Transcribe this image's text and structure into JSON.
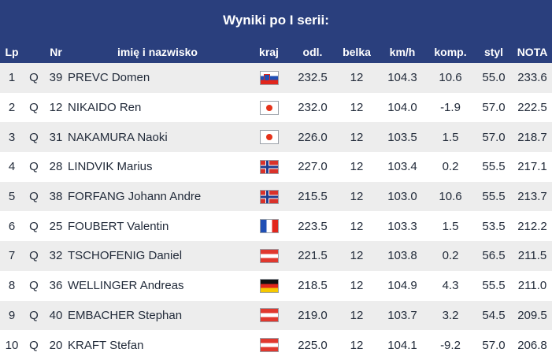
{
  "title": "Wyniki po I serii:",
  "columns": {
    "lp": "Lp",
    "nr": "Nr",
    "name": "imię i nazwisko",
    "country": "kraj",
    "distance": "odl.",
    "gate": "belka",
    "speed": "km/h",
    "comp": "komp.",
    "style": "styl",
    "total": "NOTA"
  },
  "rows": [
    {
      "lp": "1",
      "q": "Q",
      "nr": "39",
      "name": "PREVC Domen",
      "flag": "slo",
      "distance": "232.5",
      "gate": "12",
      "speed": "104.3",
      "comp": "10.6",
      "style": "55.0",
      "total": "233.6"
    },
    {
      "lp": "2",
      "q": "Q",
      "nr": "12",
      "name": "NIKAIDO Ren",
      "flag": "jpn",
      "distance": "232.0",
      "gate": "12",
      "speed": "104.0",
      "comp": "-1.9",
      "style": "57.0",
      "total": "222.5"
    },
    {
      "lp": "3",
      "q": "Q",
      "nr": "31",
      "name": "NAKAMURA Naoki",
      "flag": "jpn",
      "distance": "226.0",
      "gate": "12",
      "speed": "103.5",
      "comp": "1.5",
      "style": "57.0",
      "total": "218.7"
    },
    {
      "lp": "4",
      "q": "Q",
      "nr": "28",
      "name": "LINDVIK Marius",
      "flag": "nor",
      "distance": "227.0",
      "gate": "12",
      "speed": "103.4",
      "comp": "0.2",
      "style": "55.5",
      "total": "217.1"
    },
    {
      "lp": "5",
      "q": "Q",
      "nr": "38",
      "name": "FORFANG Johann Andre",
      "flag": "nor",
      "distance": "215.5",
      "gate": "12",
      "speed": "103.0",
      "comp": "10.6",
      "style": "55.5",
      "total": "213.7"
    },
    {
      "lp": "6",
      "q": "Q",
      "nr": "25",
      "name": "FOUBERT Valentin",
      "flag": "fra",
      "distance": "223.5",
      "gate": "12",
      "speed": "103.3",
      "comp": "1.5",
      "style": "53.5",
      "total": "212.2"
    },
    {
      "lp": "7",
      "q": "Q",
      "nr": "32",
      "name": "TSCHOFENIG Daniel",
      "flag": "aut",
      "distance": "221.5",
      "gate": "12",
      "speed": "103.8",
      "comp": "0.2",
      "style": "56.5",
      "total": "211.5"
    },
    {
      "lp": "8",
      "q": "Q",
      "nr": "36",
      "name": "WELLINGER Andreas",
      "flag": "ger",
      "distance": "218.5",
      "gate": "12",
      "speed": "104.9",
      "comp": "4.3",
      "style": "55.5",
      "total": "211.0"
    },
    {
      "lp": "9",
      "q": "Q",
      "nr": "40",
      "name": "EMBACHER Stephan",
      "flag": "aut",
      "distance": "219.0",
      "gate": "12",
      "speed": "103.7",
      "comp": "3.2",
      "style": "54.5",
      "total": "209.5"
    },
    {
      "lp": "10",
      "q": "Q",
      "nr": "20",
      "name": "KRAFT Stefan",
      "flag": "aut",
      "distance": "225.0",
      "gate": "12",
      "speed": "104.1",
      "comp": "-9.2",
      "style": "57.0",
      "total": "206.8"
    }
  ],
  "colors": {
    "header_bg": "#2a3f7d",
    "row_stripe": "#ededed",
    "text": "#222b3a"
  }
}
